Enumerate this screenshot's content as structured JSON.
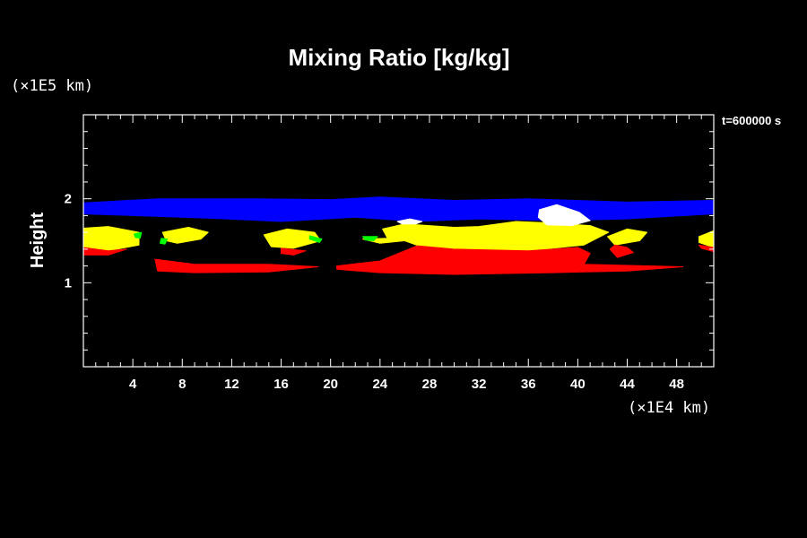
{
  "chart_data": {
    "type": "area",
    "title": "Mixing Ratio [kg/kg]",
    "xlabel": "",
    "ylabel": "Height",
    "x_unit": "(×1E4 km)",
    "y_unit": "(×1E5 km)",
    "time_label": "t=600000 s",
    "xlim": [
      0,
      51
    ],
    "ylim": [
      0,
      3
    ],
    "x_ticks": [
      4,
      8,
      12,
      16,
      20,
      24,
      28,
      32,
      36,
      40,
      44,
      48
    ],
    "y_ticks": [
      1,
      2
    ],
    "grid": false,
    "background": "#000000",
    "series": [
      {
        "color": "#0000ff",
        "regions": [
          [
            [
              0,
              1.95
            ],
            [
              6,
              2.0
            ],
            [
              14,
              2.0
            ],
            [
              20,
              1.99
            ],
            [
              24,
              2.02
            ],
            [
              30,
              1.98
            ],
            [
              36,
              2.0
            ],
            [
              44,
              1.96
            ],
            [
              51,
              1.98
            ],
            [
              51,
              1.82
            ],
            [
              44,
              1.76
            ],
            [
              38,
              1.74
            ],
            [
              32,
              1.76
            ],
            [
              27,
              1.73
            ],
            [
              22,
              1.78
            ],
            [
              16,
              1.73
            ],
            [
              10,
              1.77
            ],
            [
              4,
              1.8
            ],
            [
              0,
              1.82
            ]
          ]
        ]
      },
      {
        "color": "#ffff00",
        "regions": [
          [
            [
              0,
              1.65
            ],
            [
              2,
              1.67
            ],
            [
              4.5,
              1.6
            ],
            [
              4.5,
              1.45
            ],
            [
              2,
              1.38
            ],
            [
              0,
              1.42
            ]
          ],
          [
            [
              6.4,
              1.6
            ],
            [
              8.5,
              1.66
            ],
            [
              10.1,
              1.6
            ],
            [
              9.5,
              1.52
            ],
            [
              7.6,
              1.47
            ],
            [
              6.7,
              1.5
            ]
          ],
          [
            [
              14.6,
              1.57
            ],
            [
              16.5,
              1.64
            ],
            [
              18.7,
              1.6
            ],
            [
              19.2,
              1.5
            ],
            [
              17,
              1.41
            ],
            [
              15.2,
              1.43
            ]
          ],
          [
            [
              22.6,
              1.52
            ],
            [
              24.6,
              1.53
            ],
            [
              24.2,
              1.64
            ],
            [
              26,
              1.7
            ],
            [
              28,
              1.68
            ],
            [
              30,
              1.66
            ],
            [
              32,
              1.67
            ],
            [
              35,
              1.73
            ],
            [
              38,
              1.71
            ],
            [
              41,
              1.68
            ],
            [
              42.5,
              1.6
            ],
            [
              40.5,
              1.45
            ],
            [
              36,
              1.38
            ],
            [
              30,
              1.39
            ],
            [
              27.5,
              1.42
            ],
            [
              26,
              1.5
            ],
            [
              24,
              1.47
            ]
          ],
          [
            [
              42.4,
              1.55
            ],
            [
              44,
              1.64
            ],
            [
              45.6,
              1.6
            ],
            [
              45,
              1.5
            ],
            [
              43,
              1.45
            ]
          ],
          [
            [
              49.8,
              1.55
            ],
            [
              51,
              1.62
            ],
            [
              51,
              1.42
            ],
            [
              49.8,
              1.48
            ]
          ]
        ]
      },
      {
        "color": "#ff0000",
        "regions": [
          [
            [
              0,
              1.42
            ],
            [
              2,
              1.38
            ],
            [
              3.5,
              1.4
            ],
            [
              2,
              1.33
            ],
            [
              0,
              1.33
            ]
          ],
          [
            [
              5.8,
              1.28
            ],
            [
              9,
              1.22
            ],
            [
              15,
              1.22
            ],
            [
              19,
              1.19
            ],
            [
              15,
              1.13
            ],
            [
              9,
              1.12
            ],
            [
              6,
              1.14
            ]
          ],
          [
            [
              16,
              1.41
            ],
            [
              18,
              1.38
            ],
            [
              17,
              1.33
            ],
            [
              16,
              1.35
            ]
          ],
          [
            [
              20.5,
              1.2
            ],
            [
              24,
              1.26
            ],
            [
              27,
              1.44
            ],
            [
              30,
              1.4
            ],
            [
              36,
              1.38
            ],
            [
              40,
              1.42
            ],
            [
              41,
              1.35
            ],
            [
              40.5,
              1.22
            ],
            [
              48.5,
              1.19
            ],
            [
              44,
              1.14
            ],
            [
              38,
              1.12
            ],
            [
              30,
              1.1
            ],
            [
              24,
              1.12
            ],
            [
              20.5,
              1.16
            ]
          ],
          [
            [
              43,
              1.45
            ],
            [
              44,
              1.42
            ],
            [
              44.5,
              1.36
            ],
            [
              43.2,
              1.3
            ],
            [
              42.6,
              1.4
            ]
          ],
          [
            [
              49.8,
              1.45
            ],
            [
              51,
              1.42
            ],
            [
              51,
              1.37
            ],
            [
              50,
              1.41
            ]
          ]
        ]
      },
      {
        "color": "#00ff00",
        "regions": [
          [
            [
              4.1,
              1.58
            ],
            [
              4.7,
              1.6
            ],
            [
              4.6,
              1.53
            ],
            [
              4.2,
              1.54
            ]
          ],
          [
            [
              6.3,
              1.53
            ],
            [
              6.8,
              1.52
            ],
            [
              6.6,
              1.46
            ],
            [
              6.2,
              1.47
            ]
          ],
          [
            [
              18.3,
              1.56
            ],
            [
              19.3,
              1.52
            ],
            [
              19.1,
              1.48
            ],
            [
              18.3,
              1.52
            ]
          ],
          [
            [
              22.6,
              1.55
            ],
            [
              23.8,
              1.55
            ],
            [
              23.5,
              1.5
            ],
            [
              22.8,
              1.51
            ]
          ]
        ]
      },
      {
        "color": "#ffffff",
        "regions": [
          [
            [
              36.9,
              1.87
            ],
            [
              38.3,
              1.93
            ],
            [
              40.1,
              1.84
            ],
            [
              41,
              1.74
            ],
            [
              39.5,
              1.68
            ],
            [
              37.5,
              1.69
            ],
            [
              36.8,
              1.78
            ]
          ],
          [
            [
              25.4,
              1.73
            ],
            [
              26.4,
              1.76
            ],
            [
              27.4,
              1.73
            ],
            [
              26.9,
              1.7
            ],
            [
              25.8,
              1.7
            ]
          ]
        ]
      }
    ]
  }
}
